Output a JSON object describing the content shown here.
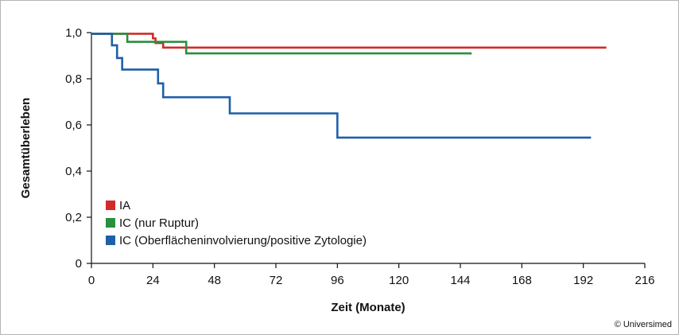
{
  "chart_data": {
    "type": "line",
    "step": true,
    "xlabel": "Zeit (Monate)",
    "ylabel": "Gesamtüberleben",
    "xlim": [
      0,
      216
    ],
    "ylim": [
      0,
      1.0
    ],
    "x_ticks": [
      0,
      24,
      48,
      72,
      96,
      120,
      144,
      168,
      192,
      216
    ],
    "x_tick_labels": [
      "0",
      "24",
      "48",
      "72",
      "96",
      "120",
      "144",
      "168",
      "192",
      "216"
    ],
    "y_ticks": [
      0,
      0.2,
      0.4,
      0.6,
      0.8,
      1.0
    ],
    "y_tick_labels": [
      "0",
      "0,2",
      "0,4",
      "0,6",
      "0,8",
      "1,0"
    ],
    "grid": false,
    "legend_position": "lower-left",
    "credit": "© Universimed",
    "series": [
      {
        "name": "IA",
        "color": "#d42a2a",
        "x": [
          0,
          24,
          25,
          28,
          201
        ],
        "y": [
          0.995,
          0.975,
          0.955,
          0.935,
          0.935
        ]
      },
      {
        "name": "IC (nur Ruptur)",
        "color": "#2a8f3f",
        "x": [
          0,
          14,
          37,
          148
        ],
        "y": [
          0.995,
          0.96,
          0.91,
          0.905
        ]
      },
      {
        "name": "IC (Oberflächeninvolvierung/positive Zytologie)",
        "color": "#1f5fa8",
        "x": [
          0,
          8,
          10,
          12,
          25,
          26,
          28,
          54,
          96,
          195
        ],
        "y": [
          0.995,
          0.945,
          0.89,
          0.84,
          0.84,
          0.78,
          0.72,
          0.65,
          0.545,
          0.545
        ]
      }
    ]
  }
}
